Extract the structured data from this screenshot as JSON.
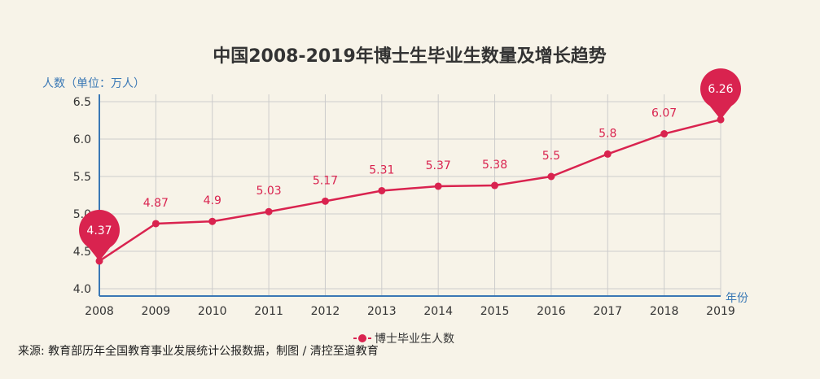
{
  "chart_data": {
    "type": "line",
    "title": "中国2008-2019年博士生毕业生数量及增长趋势",
    "ylabel": "人数（单位：万人）",
    "xlabel": "年份",
    "x": [
      "2008",
      "2009",
      "2010",
      "2011",
      "2012",
      "2013",
      "2014",
      "2015",
      "2016",
      "2017",
      "2018",
      "2019"
    ],
    "series": [
      {
        "name": "博士毕业生人数",
        "values": [
          4.37,
          4.87,
          4.9,
          5.03,
          5.17,
          5.31,
          5.37,
          5.38,
          5.5,
          5.8,
          6.07,
          6.26
        ]
      }
    ],
    "data_labels": [
      "4.37",
      "4.87",
      "4.9",
      "5.03",
      "5.17",
      "5.31",
      "5.37",
      "5.38",
      "5.5",
      "5.8",
      "6.07",
      "6.26"
    ],
    "ylim": [
      4.0,
      6.5
    ],
    "yticks": [
      "4.0",
      "4.5",
      "5.0",
      "5.5",
      "6.0",
      "6.5"
    ],
    "grid": true,
    "legend": "bottom-center",
    "highlighted_points": [
      "min",
      "max"
    ],
    "colors": {
      "series": "#d9234f",
      "axis": "#3a78b5",
      "grid": "#cccccc",
      "background": "#f7f3e8"
    }
  },
  "source_text": "来源: 教育部历年全国教育事业发展统计公报数据，制图 / 清控至道教育"
}
